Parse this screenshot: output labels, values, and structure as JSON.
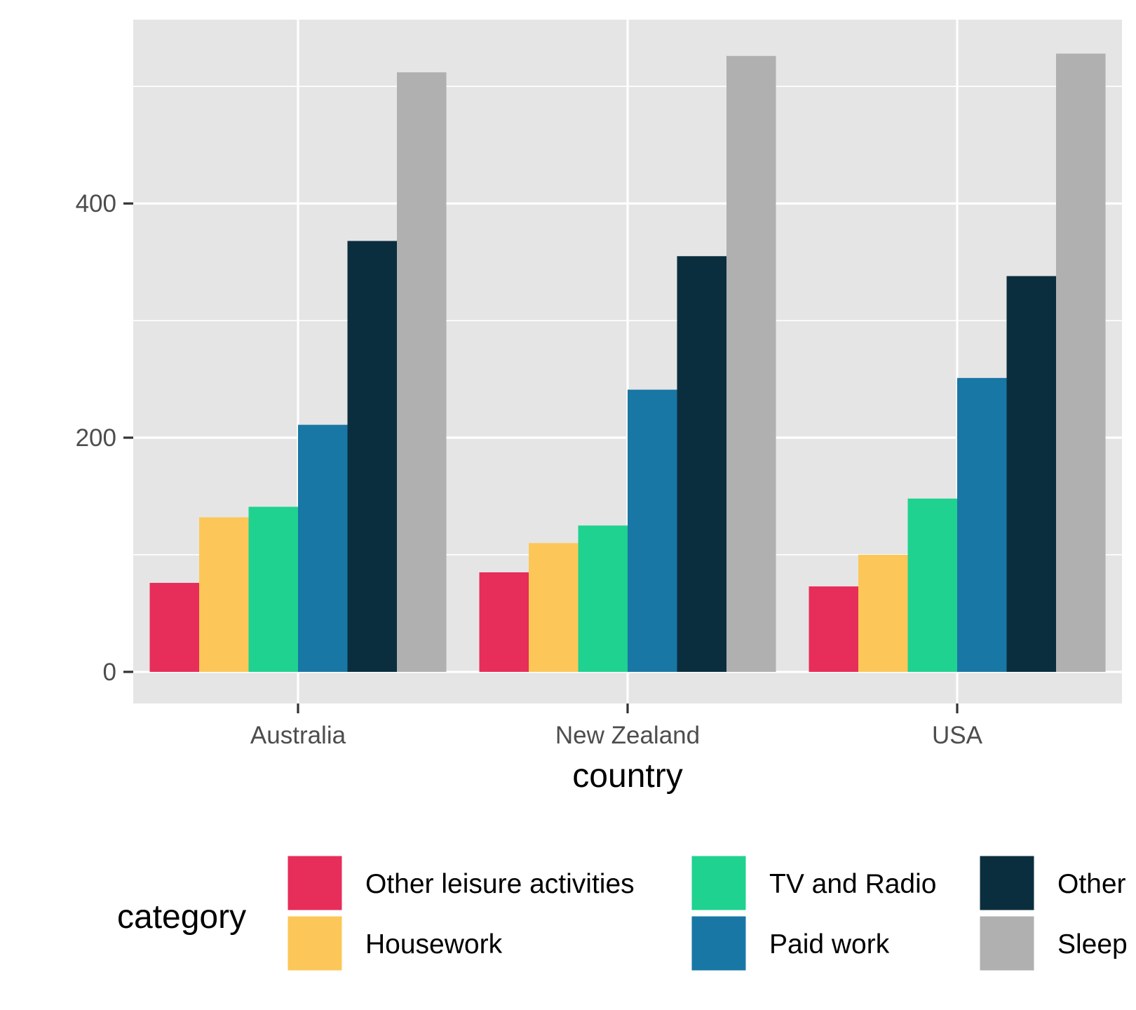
{
  "chart_data": {
    "type": "bar",
    "title": "",
    "xlabel": "country",
    "ylabel": "",
    "categories": [
      "Australia",
      "New Zealand",
      "USA"
    ],
    "ylim": [
      -27,
      557
    ],
    "y_ticks": [
      0,
      200,
      400
    ],
    "grid": true,
    "legend": {
      "title": "category",
      "position": "bottom"
    },
    "series": [
      {
        "name": "Other leisure activities",
        "color": "#E72D5A",
        "values": [
          76,
          85,
          73
        ]
      },
      {
        "name": "Housework",
        "color": "#FCC758",
        "values": [
          132,
          110,
          100
        ]
      },
      {
        "name": "TV and Radio",
        "color": "#1FD290",
        "values": [
          141,
          125,
          148
        ]
      },
      {
        "name": "Paid work",
        "color": "#1877A4",
        "values": [
          211,
          241,
          251
        ]
      },
      {
        "name": "Other",
        "color": "#0B2E3E",
        "values": [
          368,
          355,
          338
        ]
      },
      {
        "name": "Sleep",
        "color": "#B0B0B0",
        "values": [
          512,
          526,
          528
        ]
      }
    ]
  }
}
